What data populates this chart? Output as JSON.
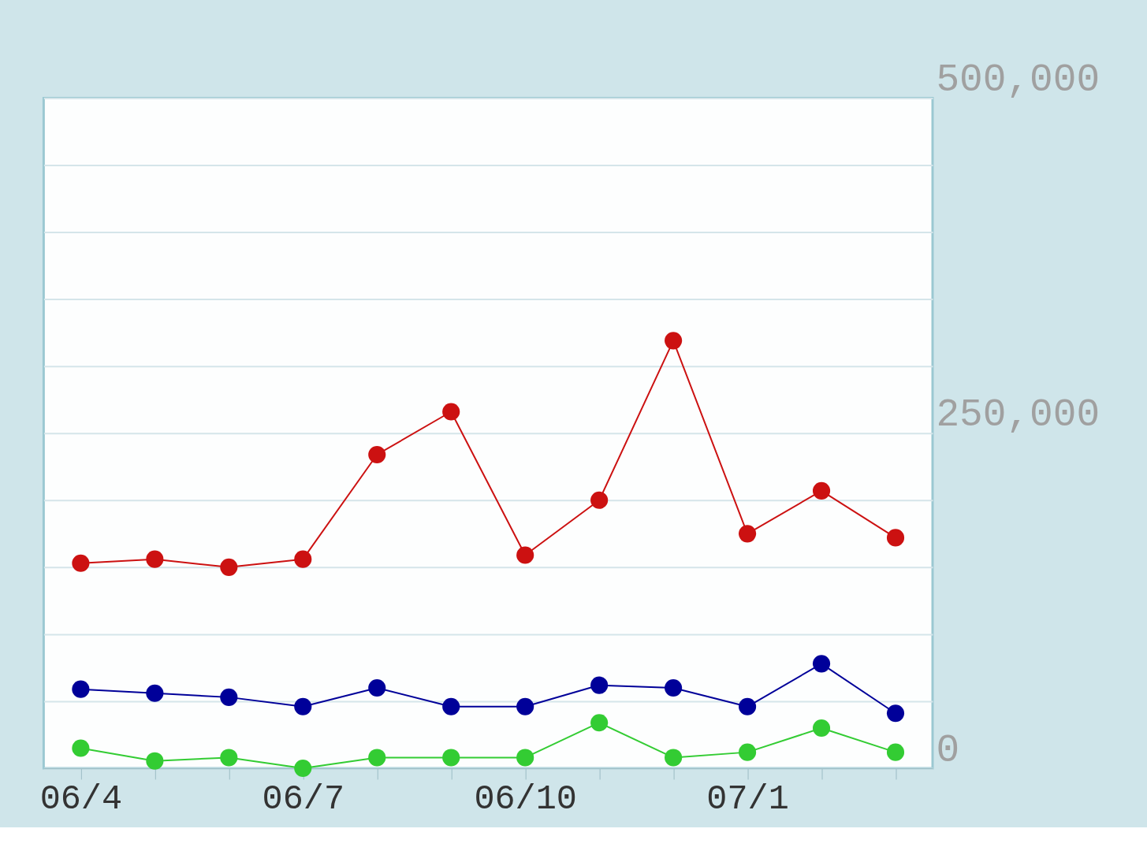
{
  "chart_data": {
    "type": "line",
    "categories": [
      "06/4",
      null,
      null,
      "06/7",
      null,
      null,
      "06/10",
      null,
      null,
      "07/1",
      null,
      null
    ],
    "series": [
      {
        "color": "#cc1111",
        "values": [
          153000,
          156000,
          150000,
          156000,
          234000,
          266000,
          159000,
          200000,
          319000,
          175000,
          207000,
          172000
        ]
      },
      {
        "color": "#000099",
        "values": [
          59000,
          56000,
          53000,
          46000,
          60000,
          46000,
          46000,
          62000,
          60000,
          46000,
          78000,
          41000
        ]
      },
      {
        "color": "#33cc33",
        "values": [
          15000,
          5500,
          8000,
          0,
          8000,
          8000,
          8000,
          34000,
          8000,
          12000,
          30000,
          12000
        ]
      }
    ],
    "ylim": [
      0,
      500000
    ],
    "yticks": [
      0,
      {
        "value": 50000,
        "label": null
      },
      {
        "value": 100000,
        "label": null
      },
      {
        "value": 150000,
        "label": null
      },
      {
        "value": 200000,
        "label": null
      },
      {
        "value": 250000,
        "label": "250,000"
      },
      {
        "value": 300000,
        "label": null
      },
      {
        "value": 350000,
        "label": null
      },
      {
        "value": 400000,
        "label": null
      },
      {
        "value": 450000,
        "label": null
      },
      {
        "value": 500000,
        "label": "500,000"
      }
    ],
    "grid": "y",
    "marker": "circle",
    "line_style": "solid"
  }
}
